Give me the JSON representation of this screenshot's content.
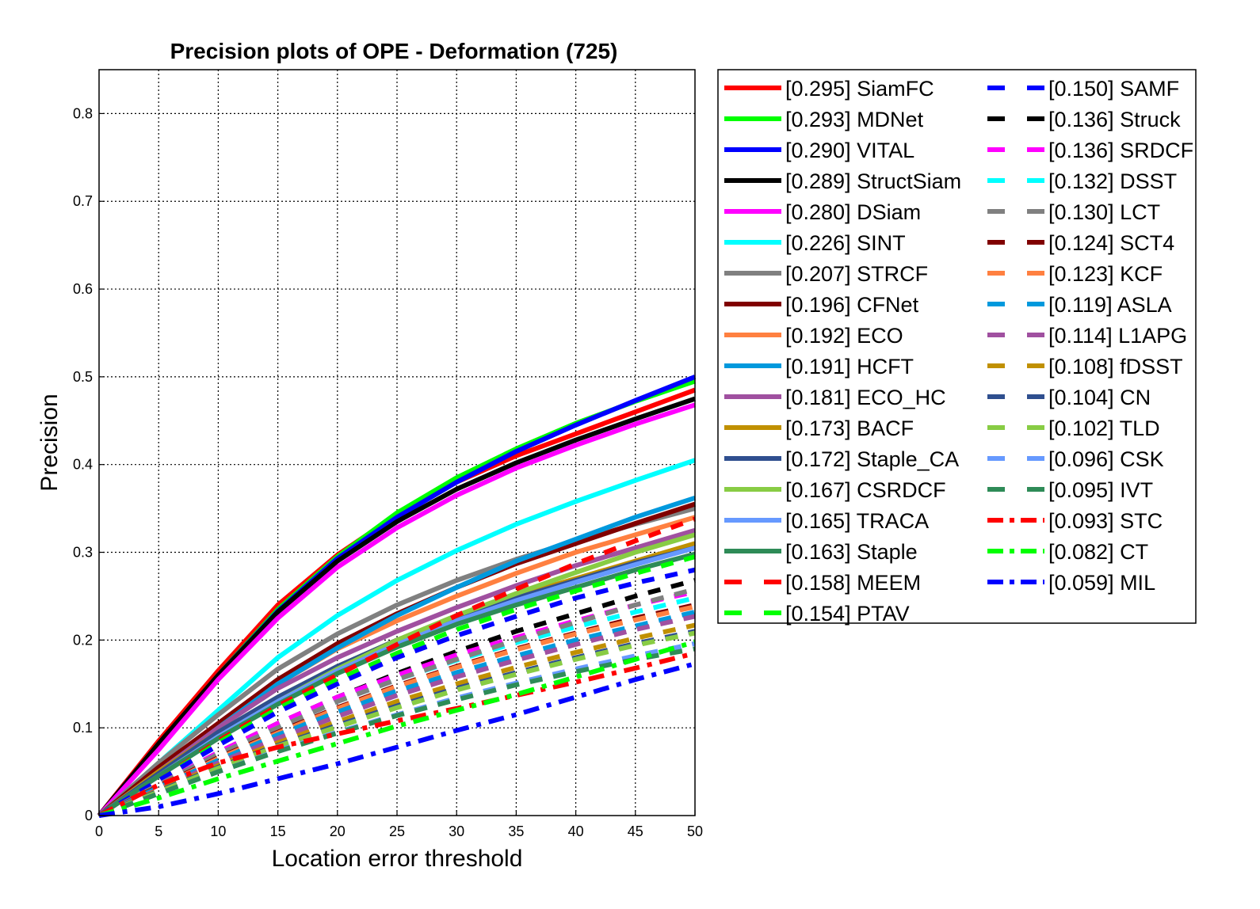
{
  "chart_data": {
    "type": "line",
    "title": "Precision plots of OPE - Deformation (725)",
    "xlabel": "Location error threshold",
    "ylabel": "Precision",
    "xlim": [
      0,
      50
    ],
    "ylim": [
      0,
      0.85
    ],
    "x_ticks": [
      "0",
      "5",
      "10",
      "15",
      "20",
      "25",
      "30",
      "35",
      "40",
      "45",
      "50"
    ],
    "y_ticks": [
      "0",
      "0.1",
      "0.2",
      "0.3",
      "0.4",
      "0.5",
      "0.6",
      "0.7",
      "0.8"
    ],
    "grid": true,
    "legend_position": "right",
    "x": [
      0,
      5,
      10,
      15,
      20,
      25,
      30,
      35,
      40,
      45,
      50
    ],
    "series": [
      {
        "name": "[0.295] SiamFC",
        "color": "#ff0000",
        "dash": "solid",
        "values": [
          0,
          0.085,
          0.165,
          0.24,
          0.297,
          0.343,
          0.38,
          0.41,
          0.435,
          0.46,
          0.485
        ]
      },
      {
        "name": "[0.293] MDNet",
        "color": "#00ff00",
        "dash": "solid",
        "values": [
          0,
          0.08,
          0.16,
          0.235,
          0.295,
          0.345,
          0.385,
          0.418,
          0.447,
          0.472,
          0.495
        ]
      },
      {
        "name": "[0.290] VITAL",
        "color": "#0000ff",
        "dash": "solid",
        "values": [
          0,
          0.08,
          0.16,
          0.233,
          0.293,
          0.34,
          0.38,
          0.415,
          0.445,
          0.473,
          0.5
        ]
      },
      {
        "name": "[0.289] StructSiam",
        "color": "#000000",
        "dash": "solid",
        "values": [
          0,
          0.082,
          0.16,
          0.232,
          0.29,
          0.335,
          0.372,
          0.402,
          0.428,
          0.452,
          0.475
        ]
      },
      {
        "name": "[0.280] DSiam",
        "color": "#ff00ff",
        "dash": "solid",
        "values": [
          0,
          0.075,
          0.155,
          0.225,
          0.283,
          0.328,
          0.365,
          0.396,
          0.422,
          0.446,
          0.468
        ]
      },
      {
        "name": "[0.226] SINT",
        "color": "#00ffff",
        "dash": "solid",
        "values": [
          0,
          0.06,
          0.12,
          0.18,
          0.228,
          0.268,
          0.302,
          0.332,
          0.358,
          0.382,
          0.405
        ]
      },
      {
        "name": "[0.207] STRCF",
        "color": "#808080",
        "dash": "solid",
        "values": [
          0,
          0.06,
          0.115,
          0.167,
          0.207,
          0.24,
          0.268,
          0.292,
          0.313,
          0.332,
          0.35
        ]
      },
      {
        "name": "[0.196] CFNet",
        "color": "#800000",
        "dash": "solid",
        "values": [
          0,
          0.055,
          0.105,
          0.155,
          0.196,
          0.23,
          0.26,
          0.287,
          0.31,
          0.333,
          0.355
        ]
      },
      {
        "name": "[0.192] ECO",
        "color": "#ff8040",
        "dash": "solid",
        "values": [
          0,
          0.05,
          0.1,
          0.15,
          0.19,
          0.222,
          0.25,
          0.276,
          0.3,
          0.32,
          0.34
        ]
      },
      {
        "name": "[0.191] HCFT",
        "color": "#0099dd",
        "dash": "solid",
        "values": [
          0,
          0.05,
          0.1,
          0.15,
          0.191,
          0.228,
          0.26,
          0.29,
          0.315,
          0.34,
          0.362
        ]
      },
      {
        "name": "[0.181] ECO_HC",
        "color": "#a050a0",
        "dash": "solid",
        "values": [
          0,
          0.05,
          0.1,
          0.145,
          0.18,
          0.21,
          0.237,
          0.262,
          0.285,
          0.305,
          0.325
        ]
      },
      {
        "name": "[0.173] BACF",
        "color": "#c09000",
        "dash": "solid",
        "values": [
          0,
          0.05,
          0.095,
          0.135,
          0.17,
          0.2,
          0.227,
          0.25,
          0.27,
          0.29,
          0.31
        ]
      },
      {
        "name": "[0.172] Staple_CA",
        "color": "#2f4f8f",
        "dash": "solid",
        "values": [
          0,
          0.048,
          0.095,
          0.135,
          0.17,
          0.2,
          0.225,
          0.248,
          0.268,
          0.288,
          0.305
        ]
      },
      {
        "name": "[0.167] CSRDCF",
        "color": "#88cc44",
        "dash": "solid",
        "values": [
          0,
          0.045,
          0.09,
          0.13,
          0.167,
          0.2,
          0.228,
          0.253,
          0.277,
          0.3,
          0.32
        ]
      },
      {
        "name": "[0.165] TRACA",
        "color": "#6699ff",
        "dash": "solid",
        "values": [
          0,
          0.045,
          0.09,
          0.13,
          0.165,
          0.195,
          0.222,
          0.245,
          0.266,
          0.286,
          0.305
        ]
      },
      {
        "name": "[0.163] Staple",
        "color": "#2e8b57",
        "dash": "solid",
        "values": [
          0,
          0.045,
          0.088,
          0.127,
          0.162,
          0.192,
          0.218,
          0.24,
          0.26,
          0.28,
          0.298
        ]
      },
      {
        "name": "[0.158] MEEM",
        "color": "#ff0000",
        "dash": "dashed",
        "values": [
          0,
          0.04,
          0.085,
          0.125,
          0.16,
          0.195,
          0.228,
          0.258,
          0.287,
          0.313,
          0.338
        ]
      },
      {
        "name": "[0.154] PTAV",
        "color": "#00ff00",
        "dash": "dashed",
        "values": [
          0,
          0.04,
          0.083,
          0.122,
          0.155,
          0.185,
          0.212,
          0.235,
          0.256,
          0.276,
          0.295
        ]
      },
      {
        "name": "[0.150] SAMF",
        "color": "#0000ff",
        "dash": "dashed",
        "values": [
          0,
          0.04,
          0.08,
          0.118,
          0.15,
          0.18,
          0.205,
          0.227,
          0.248,
          0.265,
          0.28
        ]
      },
      {
        "name": "[0.136] Struck",
        "color": "#000000",
        "dash": "dashed",
        "values": [
          0,
          0.035,
          0.072,
          0.105,
          0.135,
          0.162,
          0.187,
          0.21,
          0.23,
          0.25,
          0.268
        ]
      },
      {
        "name": "[0.136] SRDCF",
        "color": "#ff00ff",
        "dash": "dashed",
        "values": [
          0,
          0.035,
          0.072,
          0.105,
          0.135,
          0.16,
          0.183,
          0.203,
          0.222,
          0.24,
          0.255
        ]
      },
      {
        "name": "[0.132] DSST",
        "color": "#00ffff",
        "dash": "dashed",
        "values": [
          0,
          0.035,
          0.07,
          0.1,
          0.13,
          0.155,
          0.177,
          0.197,
          0.215,
          0.232,
          0.248
        ]
      },
      {
        "name": "[0.130] LCT",
        "color": "#808080",
        "dash": "dashed",
        "values": [
          0,
          0.035,
          0.07,
          0.1,
          0.13,
          0.155,
          0.178,
          0.2,
          0.22,
          0.24,
          0.258
        ]
      },
      {
        "name": "[0.124] SCT4",
        "color": "#800000",
        "dash": "dashed",
        "values": [
          0,
          0.033,
          0.066,
          0.095,
          0.123,
          0.148,
          0.17,
          0.19,
          0.208,
          0.225,
          0.24
        ]
      },
      {
        "name": "[0.123] KCF",
        "color": "#ff8040",
        "dash": "dashed",
        "values": [
          0,
          0.032,
          0.065,
          0.094,
          0.122,
          0.147,
          0.169,
          0.189,
          0.207,
          0.223,
          0.238
        ]
      },
      {
        "name": "[0.119] ASLA",
        "color": "#0099dd",
        "dash": "dashed",
        "values": [
          0,
          0.032,
          0.063,
          0.092,
          0.118,
          0.142,
          0.163,
          0.182,
          0.2,
          0.216,
          0.232
        ]
      },
      {
        "name": "[0.114] L1APG",
        "color": "#a050a0",
        "dash": "dashed",
        "values": [
          0,
          0.03,
          0.06,
          0.088,
          0.113,
          0.137,
          0.158,
          0.177,
          0.195,
          0.212,
          0.227
        ]
      },
      {
        "name": "[0.108] fDSST",
        "color": "#c09000",
        "dash": "dashed",
        "values": [
          0,
          0.029,
          0.057,
          0.083,
          0.107,
          0.13,
          0.15,
          0.169,
          0.186,
          0.202,
          0.217
        ]
      },
      {
        "name": "[0.104] CN",
        "color": "#2f4f8f",
        "dash": "dashed",
        "values": [
          0,
          0.028,
          0.055,
          0.08,
          0.103,
          0.125,
          0.145,
          0.163,
          0.18,
          0.196,
          0.21
        ]
      },
      {
        "name": "[0.102] TLD",
        "color": "#88cc44",
        "dash": "dashed",
        "values": [
          0,
          0.027,
          0.054,
          0.079,
          0.101,
          0.123,
          0.143,
          0.161,
          0.178,
          0.194,
          0.208
        ]
      },
      {
        "name": "[0.096] CSK",
        "color": "#6699ff",
        "dash": "dashed",
        "values": [
          0,
          0.025,
          0.05,
          0.074,
          0.095,
          0.115,
          0.134,
          0.151,
          0.167,
          0.182,
          0.196
        ]
      },
      {
        "name": "[0.095] IVT",
        "color": "#2e8b57",
        "dash": "dashed",
        "values": [
          0,
          0.025,
          0.05,
          0.073,
          0.094,
          0.114,
          0.132,
          0.149,
          0.164,
          0.178,
          0.19
        ]
      },
      {
        "name": "[0.093] STC",
        "color": "#ff0000",
        "dash": "dashdot",
        "values": [
          0,
          0.035,
          0.06,
          0.078,
          0.093,
          0.108,
          0.122,
          0.137,
          0.152,
          0.168,
          0.185
        ]
      },
      {
        "name": "[0.082] CT",
        "color": "#00ff00",
        "dash": "dashdot",
        "values": [
          0,
          0.02,
          0.042,
          0.062,
          0.082,
          0.102,
          0.12,
          0.138,
          0.158,
          0.178,
          0.198
        ]
      },
      {
        "name": "[0.059] MIL",
        "color": "#0000ff",
        "dash": "dashdot",
        "values": [
          0,
          0.01,
          0.025,
          0.042,
          0.059,
          0.078,
          0.097,
          0.115,
          0.135,
          0.155,
          0.173
        ]
      }
    ]
  }
}
